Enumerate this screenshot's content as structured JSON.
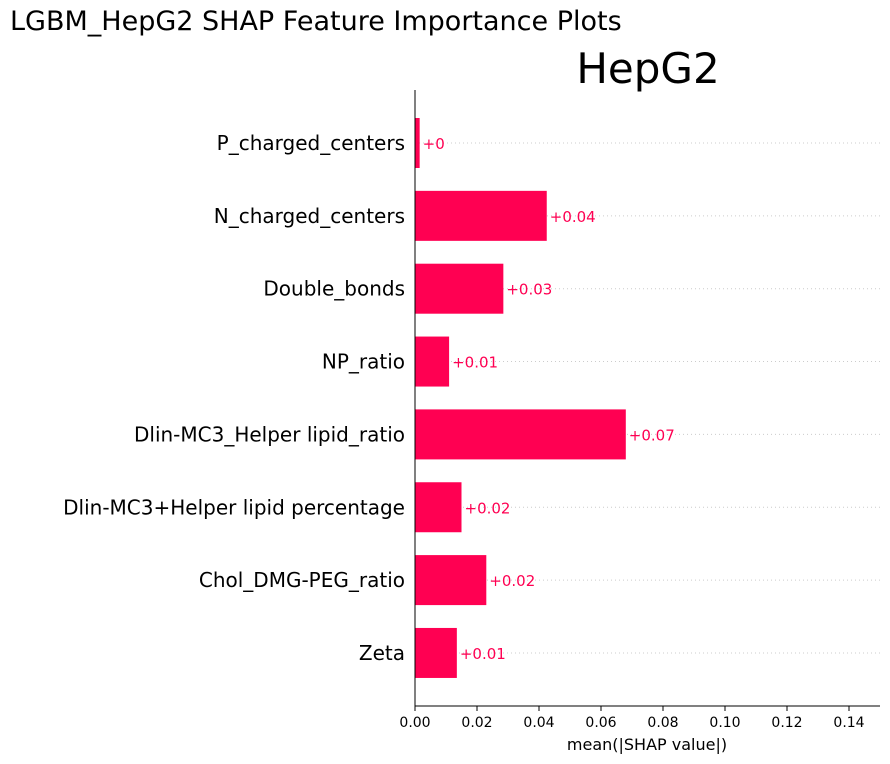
{
  "figure_title": "LGBM_HepG2 SHAP Feature Importance Plots",
  "colors": {
    "bar": "#ff0052",
    "value_label": "#ff0052",
    "gridline": "#cccccc",
    "axis": "#000000"
  },
  "chart_data": {
    "type": "bar",
    "orientation": "horizontal",
    "title": "HepG2",
    "xlabel": "mean(|SHAP value|)",
    "ylabel": "",
    "xlim": [
      0,
      0.15
    ],
    "xticks": [
      0.0,
      0.02,
      0.04,
      0.06,
      0.08,
      0.1,
      0.12,
      0.14
    ],
    "xtick_labels": [
      "0.00",
      "0.02",
      "0.04",
      "0.06",
      "0.08",
      "0.10",
      "0.12",
      "0.14"
    ],
    "grid": "horizontal dotted lines at each category",
    "categories": [
      "P_charged_centers",
      "N_charged_centers",
      "Double_bonds",
      "NP_ratio",
      "Dlin-MC3_Helper lipid_ratio",
      "Dlin-MC3+Helper lipid percentage",
      "Chol_DMG-PEG_ratio",
      "Zeta"
    ],
    "values": [
      0.0015,
      0.0425,
      0.0285,
      0.011,
      0.068,
      0.015,
      0.023,
      0.0135
    ],
    "value_labels": [
      "+0",
      "+0.04",
      "+0.03",
      "+0.01",
      "+0.07",
      "+0.02",
      "+0.02",
      "+0.01"
    ]
  }
}
